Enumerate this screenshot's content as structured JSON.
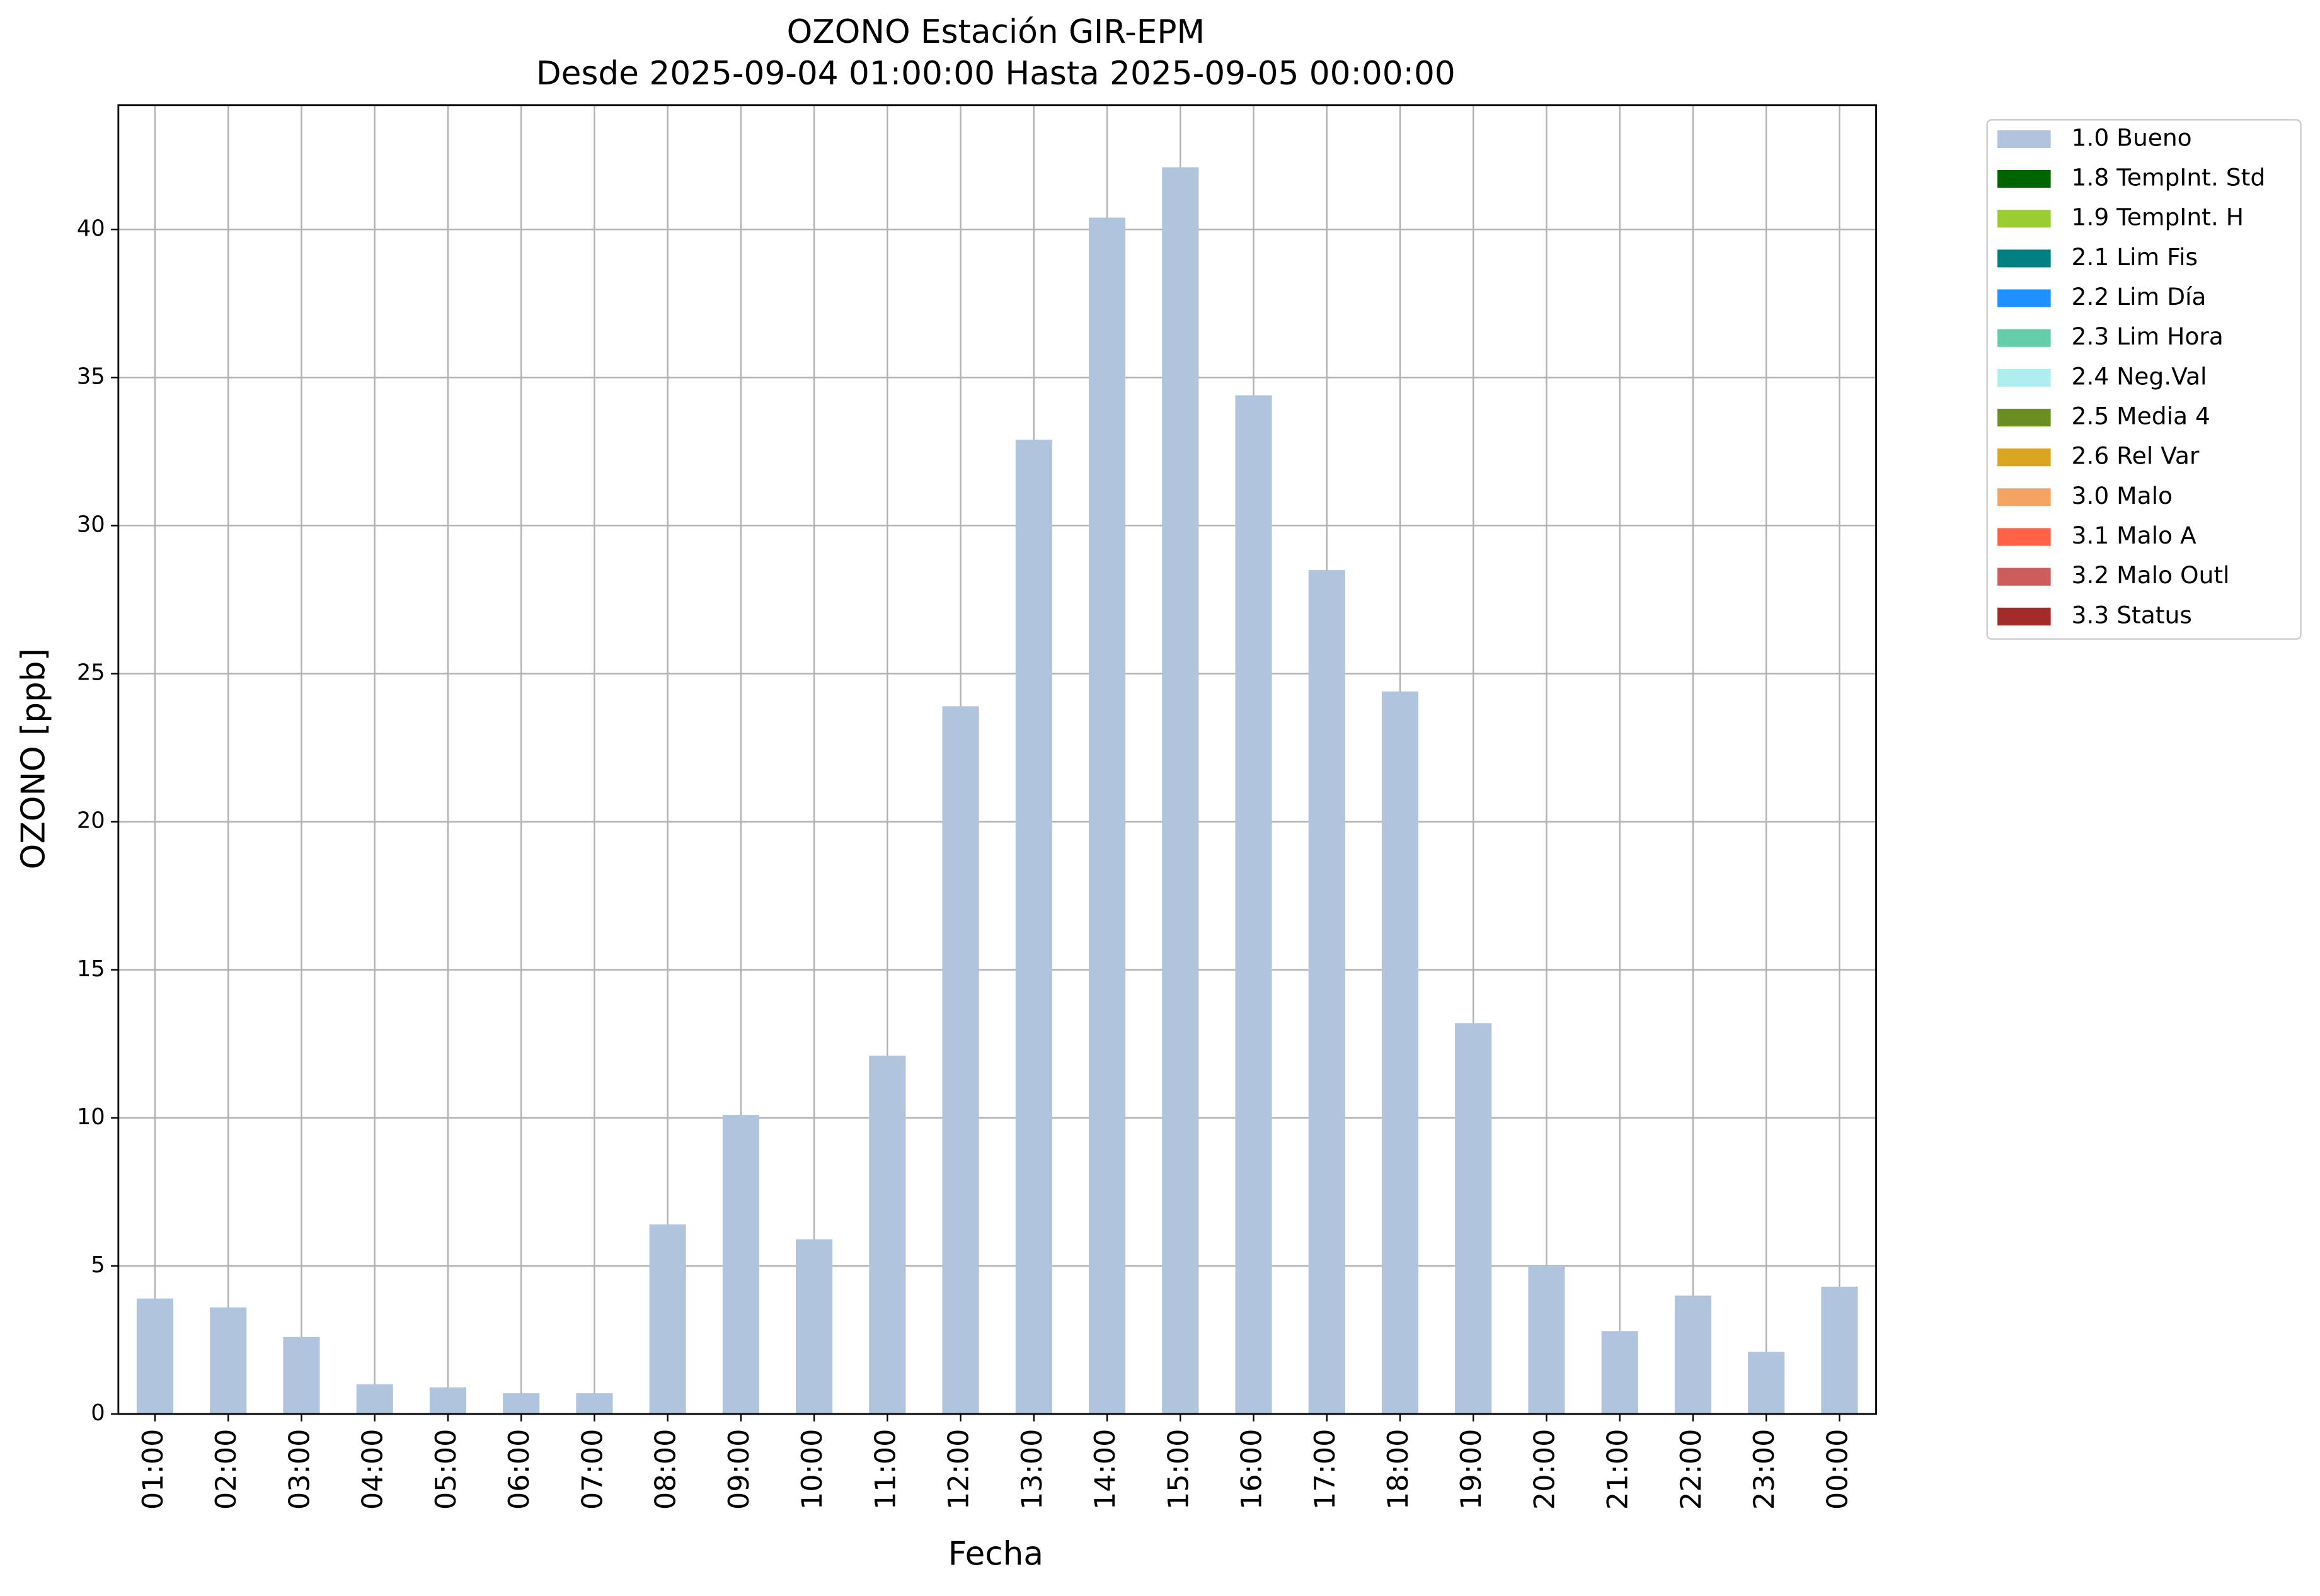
{
  "chart_data": {
    "type": "bar",
    "stacked": true,
    "title": "OZONO Estación GIR-EPM",
    "subtitle": "Desde 2025-09-04 01:00:00 Hasta 2025-09-05 00:00:00",
    "x_label": "Fecha",
    "y_label": "OZONO [ppb]",
    "categories": [
      "01:00",
      "02:00",
      "03:00",
      "04:00",
      "05:00",
      "06:00",
      "07:00",
      "08:00",
      "09:00",
      "10:00",
      "11:00",
      "12:00",
      "13:00",
      "14:00",
      "15:00",
      "16:00",
      "17:00",
      "18:00",
      "19:00",
      "20:00",
      "21:00",
      "22:00",
      "23:00",
      "00:00"
    ],
    "series": [
      {
        "name": "1.0 Bueno",
        "color": "#b0c4de",
        "values": [
          3.9,
          3.6,
          2.6,
          1.0,
          0.9,
          0.7,
          0.7,
          6.4,
          10.1,
          5.9,
          12.1,
          23.9,
          32.9,
          40.4,
          42.1,
          34.4,
          28.5,
          24.4,
          13.2,
          5.0,
          2.8,
          4.0,
          2.1,
          4.3
        ]
      },
      {
        "name": "1.8 TempInt. Std",
        "color": "#006400",
        "values": [
          null,
          null,
          null,
          null,
          null,
          null,
          null,
          null,
          null,
          null,
          null,
          null,
          null,
          null,
          null,
          null,
          null,
          null,
          null,
          null,
          null,
          null,
          null,
          null
        ]
      },
      {
        "name": "1.9 TempInt. H",
        "color": "#9acd32",
        "values": [
          null,
          null,
          null,
          null,
          null,
          null,
          null,
          null,
          null,
          null,
          null,
          null,
          null,
          null,
          null,
          null,
          null,
          null,
          null,
          null,
          null,
          null,
          null,
          null
        ]
      },
      {
        "name": "2.1 Lim Fis",
        "color": "#008080",
        "values": [
          null,
          null,
          null,
          null,
          null,
          null,
          null,
          null,
          null,
          null,
          null,
          null,
          null,
          null,
          null,
          null,
          null,
          null,
          null,
          null,
          null,
          null,
          null,
          null
        ]
      },
      {
        "name": "2.2 Lim Día",
        "color": "#1e90ff",
        "values": [
          null,
          null,
          null,
          null,
          null,
          null,
          null,
          null,
          null,
          null,
          null,
          null,
          null,
          null,
          null,
          null,
          null,
          null,
          null,
          null,
          null,
          null,
          null,
          null
        ]
      },
      {
        "name": "2.3 Lim Hora",
        "color": "#66cdaa",
        "values": [
          null,
          null,
          null,
          null,
          null,
          null,
          null,
          null,
          null,
          null,
          null,
          null,
          null,
          null,
          null,
          null,
          null,
          null,
          null,
          null,
          null,
          null,
          null,
          null
        ]
      },
      {
        "name": "2.4 Neg.Val",
        "color": "#afeeee",
        "values": [
          null,
          null,
          null,
          null,
          null,
          null,
          null,
          null,
          null,
          null,
          null,
          null,
          null,
          null,
          null,
          null,
          null,
          null,
          null,
          null,
          null,
          null,
          null,
          null
        ]
      },
      {
        "name": "2.5 Media 4",
        "color": "#6b8e23",
        "values": [
          null,
          null,
          null,
          null,
          null,
          null,
          null,
          null,
          null,
          null,
          null,
          null,
          null,
          null,
          null,
          null,
          null,
          null,
          null,
          null,
          null,
          null,
          null,
          null
        ]
      },
      {
        "name": "2.6 Rel Var",
        "color": "#daa520",
        "values": [
          null,
          null,
          null,
          null,
          null,
          null,
          null,
          null,
          null,
          null,
          null,
          null,
          null,
          null,
          null,
          null,
          null,
          null,
          null,
          null,
          null,
          null,
          null,
          null
        ]
      },
      {
        "name": "3.0 Malo",
        "color": "#f4a460",
        "values": [
          null,
          null,
          null,
          null,
          null,
          null,
          null,
          null,
          null,
          null,
          null,
          null,
          null,
          null,
          null,
          null,
          null,
          null,
          null,
          null,
          null,
          null,
          null,
          null
        ]
      },
      {
        "name": "3.1 Malo A",
        "color": "#ff6347",
        "values": [
          null,
          null,
          null,
          null,
          null,
          null,
          null,
          null,
          null,
          null,
          null,
          null,
          null,
          null,
          null,
          null,
          null,
          null,
          null,
          null,
          null,
          null,
          null,
          null
        ]
      },
      {
        "name": "3.2 Malo Outl",
        "color": "#cd5c5c",
        "values": [
          null,
          null,
          null,
          null,
          null,
          null,
          null,
          null,
          null,
          null,
          null,
          null,
          null,
          null,
          null,
          null,
          null,
          null,
          null,
          null,
          null,
          null,
          null,
          null
        ]
      },
      {
        "name": "3.3 Status",
        "color": "#a52a2a",
        "values": [
          null,
          null,
          null,
          null,
          null,
          null,
          null,
          null,
          null,
          null,
          null,
          null,
          null,
          null,
          null,
          null,
          null,
          null,
          null,
          null,
          null,
          null,
          null,
          null
        ]
      }
    ],
    "ylim": [
      0,
      44.2
    ],
    "yticks": [
      0,
      5,
      10,
      15,
      20,
      25,
      30,
      35,
      40
    ],
    "grid": true,
    "legend": "outside-right"
  }
}
